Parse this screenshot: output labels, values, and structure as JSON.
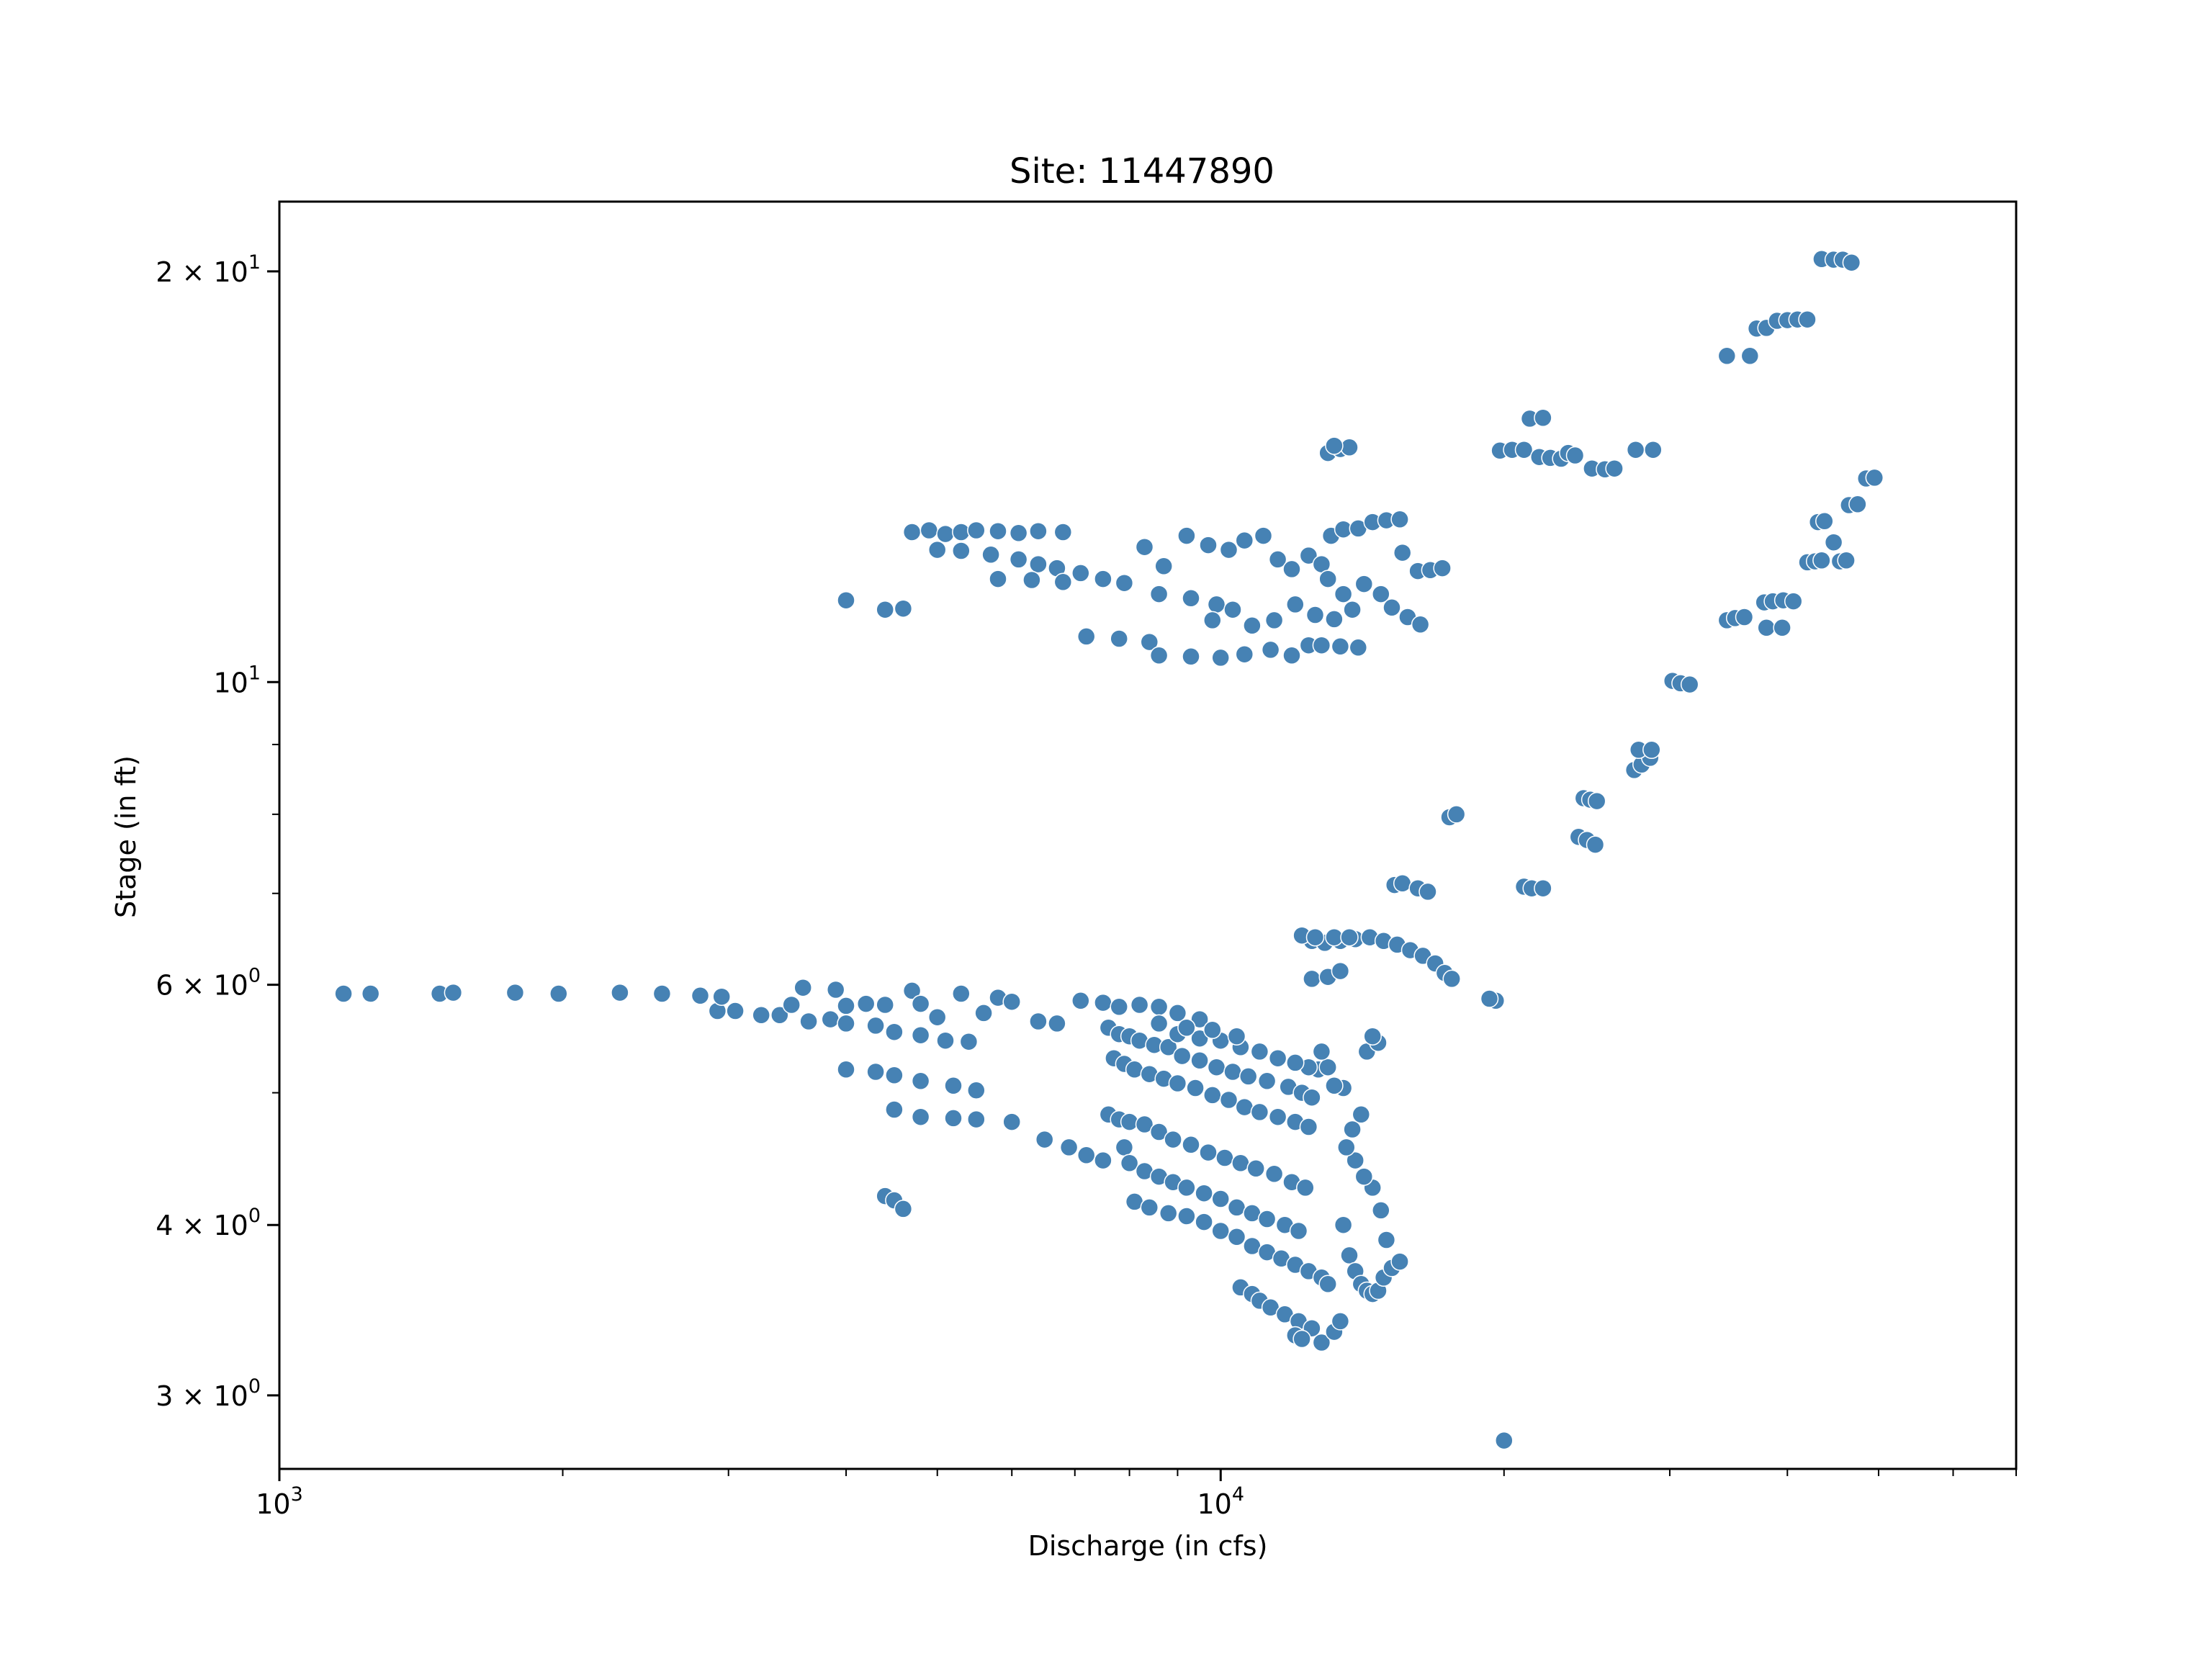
{
  "chart_data": {
    "type": "scatter",
    "title": "Site: 11447890",
    "xlabel": "Discharge (in cfs)",
    "ylabel": "Stage (in ft)",
    "xscale": "log",
    "yscale": "log",
    "xlim": [
      1000,
      70000
    ],
    "ylim": [
      2.65,
      22.5
    ],
    "grid": false,
    "legend": "none",
    "color": "#4682b4",
    "xticks": [
      {
        "value": 1000,
        "base": "10",
        "exp": "3"
      },
      {
        "value": 10000,
        "base": "10",
        "exp": "4"
      }
    ],
    "yticks": [
      {
        "value": 3,
        "base": "3 × 10",
        "exp": "0"
      },
      {
        "value": 4,
        "base": "4 × 10",
        "exp": "0"
      },
      {
        "value": 6,
        "base": "6 × 10",
        "exp": "0"
      },
      {
        "value": 10,
        "base": "10",
        "exp": "1"
      },
      {
        "value": 20,
        "base": "2 × 10",
        "exp": "1"
      }
    ],
    "points": [
      [
        1170,
        5.91
      ],
      [
        1250,
        5.91
      ],
      [
        1480,
        5.91
      ],
      [
        1530,
        5.92
      ],
      [
        1780,
        5.92
      ],
      [
        1980,
        5.91
      ],
      [
        2300,
        5.92
      ],
      [
        2550,
        5.91
      ],
      [
        2800,
        5.89
      ],
      [
        2920,
        5.74
      ],
      [
        2950,
        5.88
      ],
      [
        3050,
        5.74
      ],
      [
        3250,
        5.7
      ],
      [
        3400,
        5.7
      ],
      [
        3500,
        5.8
      ],
      [
        3650,
        5.64
      ],
      [
        3600,
        5.97
      ],
      [
        3850,
        5.66
      ],
      [
        3900,
        5.95
      ],
      [
        4000,
        5.79
      ],
      [
        4200,
        5.81
      ],
      [
        4400,
        5.8
      ],
      [
        4700,
        5.94
      ],
      [
        4800,
        5.81
      ],
      [
        5000,
        5.68
      ],
      [
        5300,
        5.91
      ],
      [
        5600,
        5.72
      ],
      [
        5800,
        5.87
      ],
      [
        6000,
        5.83
      ],
      [
        6400,
        5.64
      ],
      [
        6700,
        5.62
      ],
      [
        7100,
        5.84
      ],
      [
        7500,
        5.82
      ],
      [
        7800,
        5.78
      ],
      [
        8200,
        5.8
      ],
      [
        8600,
        5.78
      ],
      [
        9000,
        5.72
      ],
      [
        9500,
        5.66
      ],
      [
        4000,
        5.62
      ],
      [
        4300,
        5.6
      ],
      [
        4500,
        5.54
      ],
      [
        4800,
        5.51
      ],
      [
        5100,
        5.46
      ],
      [
        5400,
        5.45
      ],
      [
        4000,
        5.2
      ],
      [
        4300,
        5.18
      ],
      [
        4500,
        5.15
      ],
      [
        4800,
        5.1
      ],
      [
        5200,
        5.06
      ],
      [
        5500,
        5.02
      ],
      [
        4500,
        4.86
      ],
      [
        4800,
        4.8
      ],
      [
        5200,
        4.79
      ],
      [
        5500,
        4.78
      ],
      [
        6000,
        4.76
      ],
      [
        6500,
        4.62
      ],
      [
        6900,
        4.56
      ],
      [
        7200,
        4.5
      ],
      [
        7500,
        4.46
      ],
      [
        7900,
        4.56
      ],
      [
        4400,
        4.2
      ],
      [
        4500,
        4.17
      ],
      [
        4600,
        4.11
      ],
      [
        7600,
        5.58
      ],
      [
        7800,
        5.52
      ],
      [
        8000,
        5.5
      ],
      [
        8200,
        5.46
      ],
      [
        8500,
        5.42
      ],
      [
        8800,
        5.4
      ],
      [
        9100,
        5.32
      ],
      [
        9500,
        5.28
      ],
      [
        9900,
        5.22
      ],
      [
        10300,
        5.18
      ],
      [
        10700,
        5.14
      ],
      [
        11200,
        5.1
      ],
      [
        11800,
        5.05
      ],
      [
        12200,
        5.0
      ],
      [
        12500,
        4.96
      ],
      [
        7700,
        5.3
      ],
      [
        7900,
        5.25
      ],
      [
        8100,
        5.2
      ],
      [
        8400,
        5.16
      ],
      [
        8700,
        5.12
      ],
      [
        9000,
        5.08
      ],
      [
        9400,
        5.04
      ],
      [
        9800,
        4.98
      ],
      [
        10200,
        4.94
      ],
      [
        10600,
        4.88
      ],
      [
        11000,
        4.84
      ],
      [
        11500,
        4.8
      ],
      [
        12000,
        4.76
      ],
      [
        12400,
        4.72
      ],
      [
        7600,
        4.82
      ],
      [
        7800,
        4.78
      ],
      [
        8000,
        4.76
      ],
      [
        8300,
        4.74
      ],
      [
        8600,
        4.68
      ],
      [
        8900,
        4.62
      ],
      [
        9300,
        4.58
      ],
      [
        9700,
        4.52
      ],
      [
        10100,
        4.48
      ],
      [
        10500,
        4.44
      ],
      [
        10900,
        4.4
      ],
      [
        11400,
        4.36
      ],
      [
        11900,
        4.3
      ],
      [
        12300,
        4.26
      ],
      [
        8000,
        4.44
      ],
      [
        8300,
        4.38
      ],
      [
        8600,
        4.34
      ],
      [
        8900,
        4.3
      ],
      [
        9200,
        4.26
      ],
      [
        9600,
        4.22
      ],
      [
        10000,
        4.18
      ],
      [
        10400,
        4.12
      ],
      [
        10800,
        4.08
      ],
      [
        11200,
        4.04
      ],
      [
        11700,
        4.0
      ],
      [
        12100,
        3.96
      ],
      [
        8100,
        4.16
      ],
      [
        8400,
        4.12
      ],
      [
        8800,
        4.08
      ],
      [
        9200,
        4.06
      ],
      [
        9600,
        4.02
      ],
      [
        10000,
        3.96
      ],
      [
        10400,
        3.92
      ],
      [
        10800,
        3.86
      ],
      [
        11200,
        3.82
      ],
      [
        11600,
        3.78
      ],
      [
        12000,
        3.74
      ],
      [
        12400,
        3.7
      ],
      [
        12800,
        3.66
      ],
      [
        10500,
        3.6
      ],
      [
        10800,
        3.56
      ],
      [
        11000,
        3.52
      ],
      [
        11300,
        3.48
      ],
      [
        11700,
        3.44
      ],
      [
        12100,
        3.4
      ],
      [
        12500,
        3.36
      ],
      [
        12000,
        3.32
      ],
      [
        12200,
        3.3
      ],
      [
        12800,
        3.28
      ],
      [
        13200,
        3.34
      ],
      [
        13400,
        3.4
      ],
      [
        13000,
        3.62
      ],
      [
        13500,
        4.0
      ],
      [
        13700,
        3.8
      ],
      [
        13900,
        3.7
      ],
      [
        14100,
        3.62
      ],
      [
        14300,
        3.58
      ],
      [
        14500,
        3.56
      ],
      [
        14700,
        3.58
      ],
      [
        14900,
        3.66
      ],
      [
        15200,
        3.72
      ],
      [
        15500,
        3.76
      ],
      [
        15000,
        3.9
      ],
      [
        14800,
        4.1
      ],
      [
        14500,
        4.26
      ],
      [
        14200,
        4.34
      ],
      [
        13900,
        4.46
      ],
      [
        13600,
        4.56
      ],
      [
        13800,
        4.7
      ],
      [
        14100,
        4.82
      ],
      [
        13500,
        5.04
      ],
      [
        13200,
        5.06
      ],
      [
        14300,
        5.36
      ],
      [
        14700,
        5.44
      ],
      [
        14500,
        5.5
      ],
      [
        12700,
        5.2
      ],
      [
        12400,
        5.22
      ],
      [
        13000,
        5.22
      ],
      [
        12800,
        5.36
      ],
      [
        9000,
        5.52
      ],
      [
        9500,
        5.48
      ],
      [
        10000,
        5.46
      ],
      [
        10500,
        5.4
      ],
      [
        11000,
        5.36
      ],
      [
        11500,
        5.3
      ],
      [
        12000,
        5.26
      ],
      [
        8600,
        5.62
      ],
      [
        9200,
        5.58
      ],
      [
        9800,
        5.56
      ],
      [
        10400,
        5.5
      ],
      [
        12500,
        6.06
      ],
      [
        13000,
        6.08
      ],
      [
        13400,
        6.14
      ],
      [
        12500,
        6.46
      ],
      [
        12900,
        6.44
      ],
      [
        13400,
        6.46
      ],
      [
        13900,
        6.48
      ],
      [
        14400,
        6.5
      ],
      [
        14900,
        6.46
      ],
      [
        15400,
        6.42
      ],
      [
        15900,
        6.36
      ],
      [
        16400,
        6.3
      ],
      [
        16900,
        6.22
      ],
      [
        17300,
        6.12
      ],
      [
        17600,
        6.06
      ],
      [
        12200,
        6.52
      ],
      [
        12600,
        6.5
      ],
      [
        13200,
        6.5
      ],
      [
        13700,
        6.5
      ],
      [
        15300,
        7.1
      ],
      [
        15600,
        7.12
      ],
      [
        16200,
        7.06
      ],
      [
        16600,
        7.02
      ],
      [
        17500,
        7.96
      ],
      [
        17800,
        8.0
      ],
      [
        19600,
        5.84
      ],
      [
        19300,
        5.86
      ],
      [
        21000,
        7.08
      ],
      [
        21400,
        7.06
      ],
      [
        22000,
        7.06
      ],
      [
        24000,
        7.7
      ],
      [
        24500,
        7.66
      ],
      [
        25000,
        7.6
      ],
      [
        24300,
        8.22
      ],
      [
        24700,
        8.2
      ],
      [
        25100,
        8.18
      ],
      [
        27500,
        8.62
      ],
      [
        28000,
        8.7
      ],
      [
        28600,
        8.8
      ],
      [
        27800,
        8.92
      ],
      [
        28700,
        8.92
      ],
      [
        30200,
        10.02
      ],
      [
        30800,
        9.98
      ],
      [
        31500,
        9.96
      ],
      [
        34500,
        11.1
      ],
      [
        35200,
        11.14
      ],
      [
        36000,
        11.16
      ],
      [
        38000,
        10.96
      ],
      [
        39500,
        10.96
      ],
      [
        37800,
        11.44
      ],
      [
        38600,
        11.46
      ],
      [
        39600,
        11.48
      ],
      [
        40600,
        11.46
      ],
      [
        42000,
        12.24
      ],
      [
        42800,
        12.26
      ],
      [
        43500,
        12.28
      ],
      [
        45500,
        12.26
      ],
      [
        46200,
        12.28
      ],
      [
        44800,
        12.66
      ],
      [
        43100,
        13.1
      ],
      [
        43800,
        13.12
      ],
      [
        46500,
        13.48
      ],
      [
        47500,
        13.5
      ],
      [
        48500,
        14.1
      ],
      [
        49500,
        14.12
      ],
      [
        34500,
        17.34
      ],
      [
        36500,
        17.34
      ],
      [
        37100,
        18.16
      ],
      [
        38000,
        18.18
      ],
      [
        39000,
        18.4
      ],
      [
        40000,
        18.42
      ],
      [
        41000,
        18.44
      ],
      [
        42000,
        18.44
      ],
      [
        43500,
        20.42
      ],
      [
        44800,
        20.4
      ],
      [
        45800,
        20.4
      ],
      [
        46800,
        20.3
      ],
      [
        19800,
        14.78
      ],
      [
        20400,
        14.8
      ],
      [
        21000,
        14.8
      ],
      [
        21300,
        15.6
      ],
      [
        22000,
        15.62
      ],
      [
        21800,
        14.62
      ],
      [
        22400,
        14.6
      ],
      [
        23000,
        14.58
      ],
      [
        23400,
        14.72
      ],
      [
        23800,
        14.66
      ],
      [
        24800,
        14.34
      ],
      [
        25600,
        14.32
      ],
      [
        26200,
        14.34
      ],
      [
        27600,
        14.8
      ],
      [
        28800,
        14.8
      ],
      [
        4000,
        11.48
      ],
      [
        4400,
        11.3
      ],
      [
        4600,
        11.32
      ],
      [
        4700,
        12.88
      ],
      [
        4900,
        12.92
      ],
      [
        5100,
        12.84
      ],
      [
        5300,
        12.88
      ],
      [
        5500,
        12.92
      ],
      [
        5800,
        12.9
      ],
      [
        6100,
        12.86
      ],
      [
        6400,
        12.9
      ],
      [
        6800,
        12.88
      ],
      [
        5000,
        12.5
      ],
      [
        5300,
        12.48
      ],
      [
        5700,
        12.4
      ],
      [
        6100,
        12.3
      ],
      [
        6400,
        12.2
      ],
      [
        6700,
        12.12
      ],
      [
        7100,
        12.02
      ],
      [
        5800,
        11.9
      ],
      [
        6300,
        11.88
      ],
      [
        6800,
        11.84
      ],
      [
        7500,
        11.9
      ],
      [
        7900,
        11.82
      ],
      [
        8600,
        11.6
      ],
      [
        9300,
        11.52
      ],
      [
        9900,
        11.4
      ],
      [
        7200,
        10.8
      ],
      [
        7800,
        10.76
      ],
      [
        8400,
        10.7
      ],
      [
        8600,
        10.46
      ],
      [
        9300,
        10.44
      ],
      [
        10000,
        10.42
      ],
      [
        10600,
        10.48
      ],
      [
        11300,
        10.56
      ],
      [
        11900,
        10.46
      ],
      [
        12400,
        10.64
      ],
      [
        12800,
        10.64
      ],
      [
        13400,
        10.62
      ],
      [
        14000,
        10.6
      ],
      [
        8300,
        12.56
      ],
      [
        8700,
        12.16
      ],
      [
        9200,
        12.8
      ],
      [
        9700,
        12.6
      ],
      [
        10200,
        12.5
      ],
      [
        10600,
        12.7
      ],
      [
        11100,
        12.8
      ],
      [
        11500,
        12.3
      ],
      [
        11900,
        12.1
      ],
      [
        12400,
        12.38
      ],
      [
        12800,
        12.2
      ],
      [
        13100,
        12.8
      ],
      [
        13500,
        12.94
      ],
      [
        14000,
        12.96
      ],
      [
        14500,
        13.1
      ],
      [
        15000,
        13.14
      ],
      [
        15500,
        13.16
      ],
      [
        15600,
        12.44
      ],
      [
        16200,
        12.06
      ],
      [
        16700,
        12.08
      ],
      [
        17200,
        12.12
      ],
      [
        14200,
        11.8
      ],
      [
        14800,
        11.6
      ],
      [
        15200,
        11.34
      ],
      [
        15800,
        11.16
      ],
      [
        16300,
        11.02
      ],
      [
        13000,
        11.9
      ],
      [
        13500,
        11.6
      ],
      [
        13800,
        11.3
      ],
      [
        13200,
        11.12
      ],
      [
        12600,
        11.2
      ],
      [
        12000,
        11.4
      ],
      [
        11400,
        11.1
      ],
      [
        10800,
        11.0
      ],
      [
        10300,
        11.3
      ],
      [
        9800,
        11.1
      ],
      [
        13000,
        14.72
      ],
      [
        13400,
        14.82
      ],
      [
        13700,
        14.86
      ],
      [
        13200,
        14.9
      ],
      [
        20000,
        2.78
      ]
    ]
  }
}
